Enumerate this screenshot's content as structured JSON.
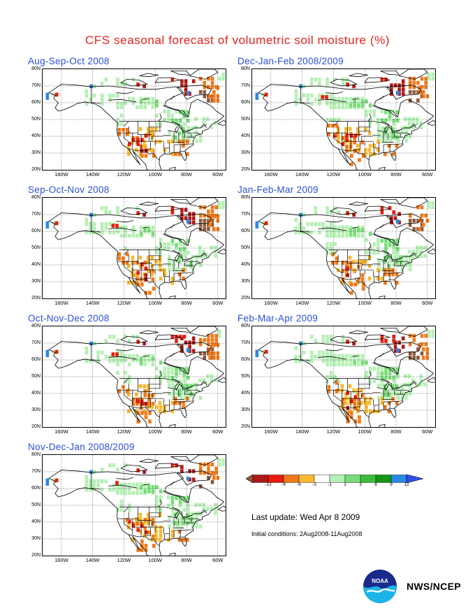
{
  "title": "CFS seasonal forecast of volumetric soil moisture (%)",
  "panels": [
    {
      "title": "Aug-Sep-Oct 2008",
      "variant": 0
    },
    {
      "title": "Dec-Jan-Feb 2008/2009",
      "variant": 4
    },
    {
      "title": "Sep-Oct-Nov 2008",
      "variant": 1
    },
    {
      "title": "Jan-Feb-Mar 2009",
      "variant": 5
    },
    {
      "title": "Oct-Nov-Dec 2008",
      "variant": 2
    },
    {
      "title": "Feb-Mar-Apr 2009",
      "variant": 6
    },
    {
      "title": "Nov-Dec-Jan 2008/2009",
      "variant": 3
    }
  ],
  "lat_labels": [
    "80N",
    "70N",
    "60N",
    "50N",
    "40N",
    "30N",
    "20N"
  ],
  "lon_labels": [
    "160W",
    "140W",
    "120W",
    "100W",
    "80W",
    "60W"
  ],
  "colorbar": {
    "labels": [
      "-12",
      "-9",
      "-6",
      "-3",
      "-1",
      "1",
      "3",
      "6",
      "9",
      "12"
    ],
    "colors": [
      "#8c5a3c",
      "#b01818",
      "#e81c0c",
      "#f07818",
      "#f8b830",
      "#ffffff",
      "#b4f0b4",
      "#78dc78",
      "#3cbc3c",
      "#149614",
      "#2a88e8",
      "#3050e8"
    ]
  },
  "last_update": "Last update: Wed Apr 8 2009",
  "initial_conditions": "Initial conditions: 2Aug2008-11Aug2008",
  "agency": "NWS/NCEP",
  "logo_text": "NOAA"
}
